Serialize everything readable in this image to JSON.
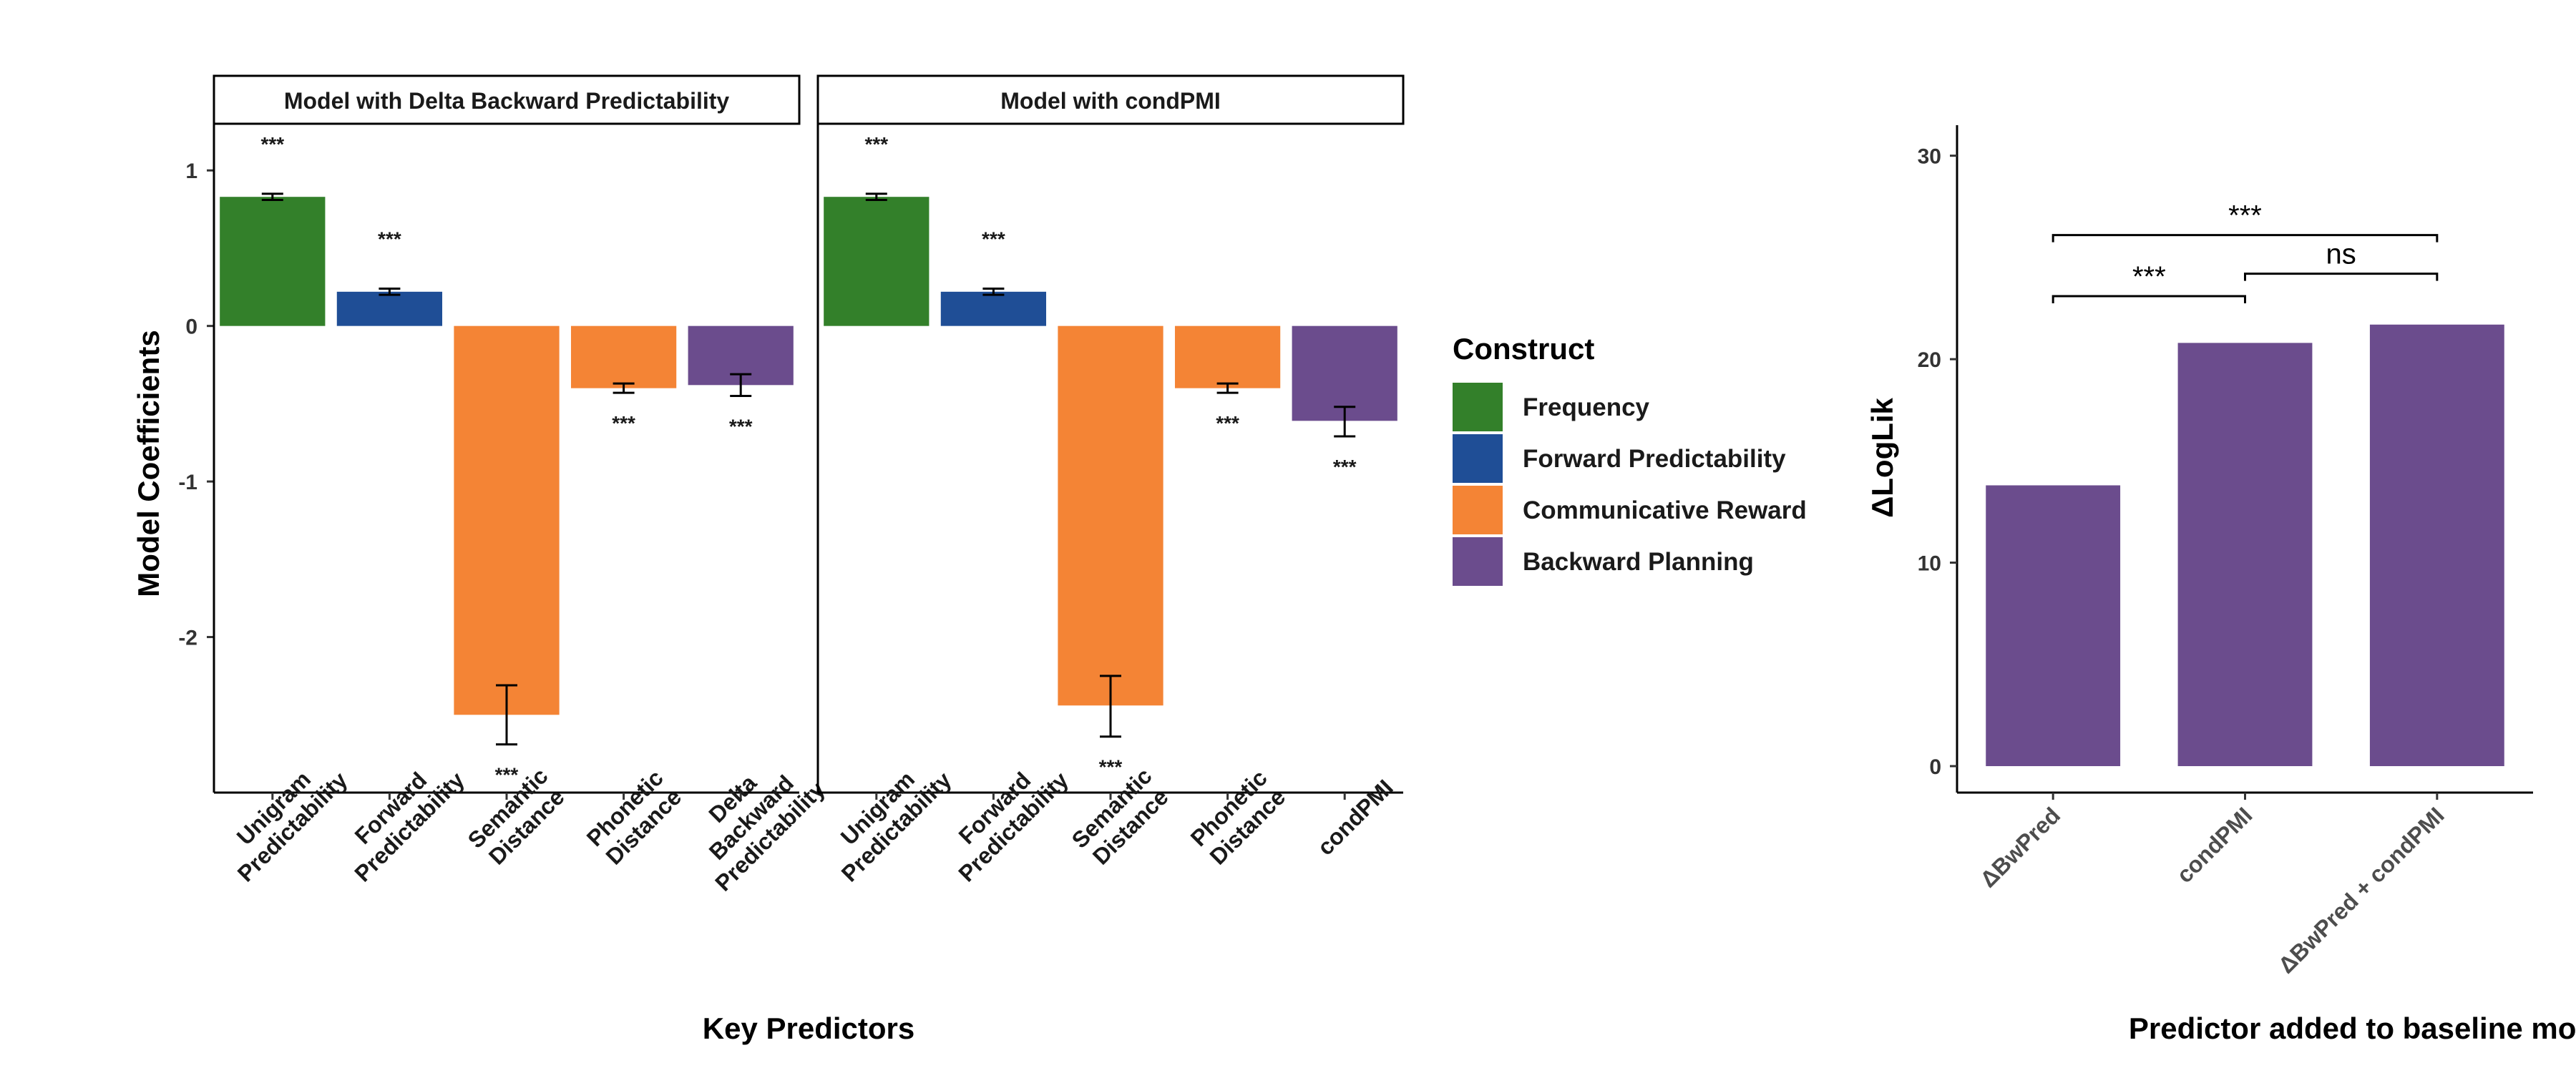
{
  "colors": {
    "frequency": "#33802a",
    "forward_predictability": "#1f4e96",
    "communicative_reward": "#f48435",
    "backward_planning": "#6b4c8d"
  },
  "chart_data": [
    {
      "type": "bar",
      "panel": "left",
      "ylabel": "Model Coefficients",
      "xlabel": "Key Predictors",
      "ylim": [
        -3.0,
        1.3
      ],
      "yticks": [
        1,
        0,
        -1,
        -2
      ],
      "ytick_labels": [
        "1",
        "0",
        "-1",
        "-2"
      ],
      "legend": {
        "title": "Construct",
        "entries": [
          {
            "label": "Frequency",
            "color_key": "frequency"
          },
          {
            "label": "Forward Predictability",
            "color_key": "forward_predictability"
          },
          {
            "label": "Communicative Reward",
            "color_key": "communicative_reward"
          },
          {
            "label": "Backward Planning",
            "color_key": "backward_planning"
          }
        ],
        "position": "right"
      },
      "facets": [
        {
          "strip": "Model with Delta Backward Predictability",
          "bars": [
            {
              "category": [
                "Unigram",
                "Predictability"
              ],
              "value": 0.83,
              "err_low": 0.81,
              "err_high": 0.85,
              "construct": "frequency",
              "sig": "***"
            },
            {
              "category": [
                "Forward",
                "Predictability"
              ],
              "value": 0.22,
              "err_low": 0.2,
              "err_high": 0.24,
              "construct": "forward_predictability",
              "sig": "***"
            },
            {
              "category": [
                "Semantic",
                "Distance"
              ],
              "value": -2.5,
              "err_low": -2.69,
              "err_high": -2.31,
              "construct": "communicative_reward",
              "sig": "***"
            },
            {
              "category": [
                "Phonetic",
                "Distance"
              ],
              "value": -0.4,
              "err_low": -0.43,
              "err_high": -0.37,
              "construct": "communicative_reward",
              "sig": "***"
            },
            {
              "category": [
                "Delta",
                "Backward",
                "Predictability"
              ],
              "value": -0.38,
              "err_low": -0.45,
              "err_high": -0.31,
              "construct": "backward_planning",
              "sig": "***"
            }
          ]
        },
        {
          "strip": "Model with condPMI",
          "bars": [
            {
              "category": [
                "Unigram",
                "Predictability"
              ],
              "value": 0.83,
              "err_low": 0.81,
              "err_high": 0.85,
              "construct": "frequency",
              "sig": "***"
            },
            {
              "category": [
                "Forward",
                "Predictability"
              ],
              "value": 0.22,
              "err_low": 0.2,
              "err_high": 0.24,
              "construct": "forward_predictability",
              "sig": "***"
            },
            {
              "category": [
                "Semantic",
                "Distance"
              ],
              "value": -2.44,
              "err_low": -2.64,
              "err_high": -2.25,
              "construct": "communicative_reward",
              "sig": "***"
            },
            {
              "category": [
                "Phonetic",
                "Distance"
              ],
              "value": -0.4,
              "err_low": -0.43,
              "err_high": -0.37,
              "construct": "communicative_reward",
              "sig": "***"
            },
            {
              "category": [
                "condPMI"
              ],
              "value": -0.61,
              "err_low": -0.71,
              "err_high": -0.52,
              "construct": "backward_planning",
              "sig": "***"
            }
          ]
        }
      ]
    },
    {
      "type": "bar",
      "panel": "right",
      "ylabel": "ΔLogLik",
      "xlabel": "Predictor added to baseline model",
      "ylim": [
        -1.3,
        31.5
      ],
      "yticks": [
        0,
        10,
        20,
        30
      ],
      "ytick_labels": [
        "0",
        "10",
        "20",
        "30"
      ],
      "categories": [
        "ΔBwPred",
        "condPMI",
        "ΔBwPred + condPMI"
      ],
      "values": [
        13.8,
        20.8,
        21.7
      ],
      "bar_color_key": "backward_planning",
      "comparisons": [
        {
          "from": 0,
          "to": 1,
          "label": "***"
        },
        {
          "from": 1,
          "to": 2,
          "label": "ns"
        },
        {
          "from": 0,
          "to": 2,
          "label": "***"
        }
      ]
    }
  ]
}
